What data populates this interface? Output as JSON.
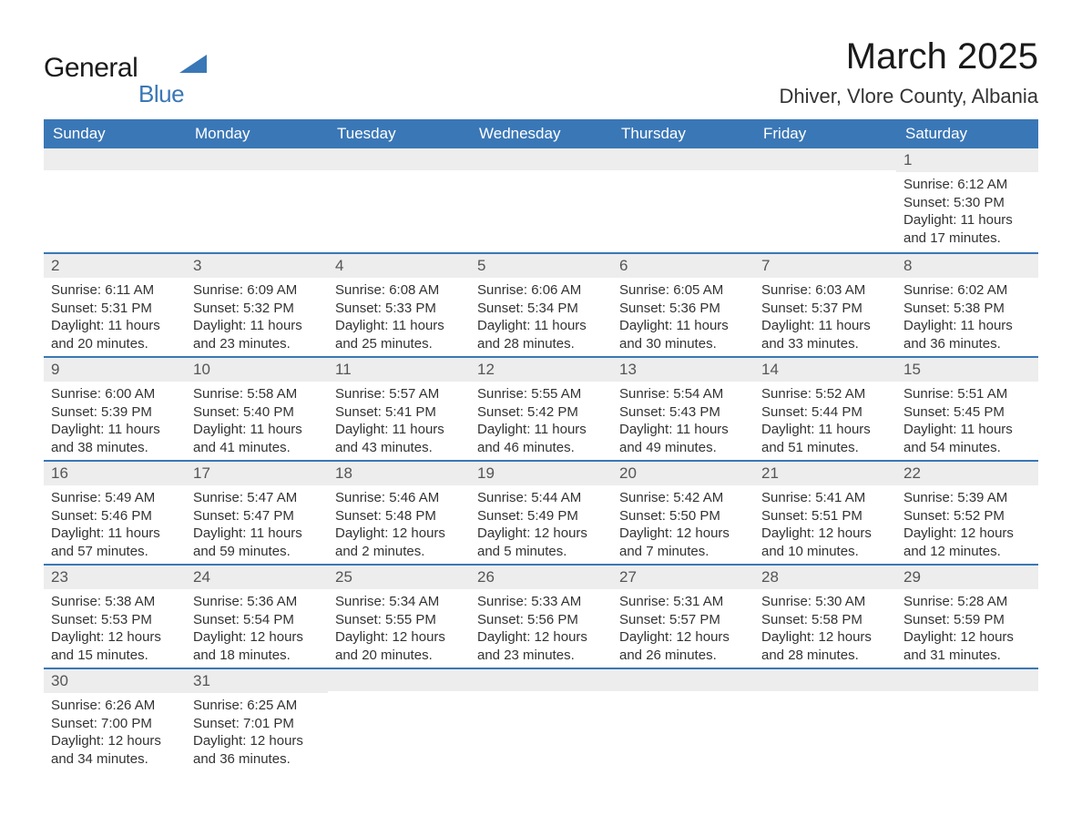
{
  "logo": {
    "text_general": "General",
    "text_blue": "Blue"
  },
  "title": "March 2025",
  "location": "Dhiver, Vlore County, Albania",
  "colors": {
    "header_bg": "#3a77b6",
    "header_text": "#ffffff",
    "daybar_bg": "#ededed",
    "divider": "#3a77b6",
    "body_text": "#333333",
    "logo_dark": "#1a1a1a",
    "logo_blue": "#3a77b6"
  },
  "typography": {
    "month_title_fontsize": 40,
    "location_fontsize": 22,
    "weekday_fontsize": 17,
    "daynum_fontsize": 17,
    "daytext_fontsize": 15
  },
  "weekdays": [
    "Sunday",
    "Monday",
    "Tuesday",
    "Wednesday",
    "Thursday",
    "Friday",
    "Saturday"
  ],
  "weeks": [
    [
      null,
      null,
      null,
      null,
      null,
      null,
      {
        "n": "1",
        "sr": "6:12 AM",
        "ss": "5:30 PM",
        "dh": "11",
        "dm": "17"
      }
    ],
    [
      {
        "n": "2",
        "sr": "6:11 AM",
        "ss": "5:31 PM",
        "dh": "11",
        "dm": "20"
      },
      {
        "n": "3",
        "sr": "6:09 AM",
        "ss": "5:32 PM",
        "dh": "11",
        "dm": "23"
      },
      {
        "n": "4",
        "sr": "6:08 AM",
        "ss": "5:33 PM",
        "dh": "11",
        "dm": "25"
      },
      {
        "n": "5",
        "sr": "6:06 AM",
        "ss": "5:34 PM",
        "dh": "11",
        "dm": "28"
      },
      {
        "n": "6",
        "sr": "6:05 AM",
        "ss": "5:36 PM",
        "dh": "11",
        "dm": "30"
      },
      {
        "n": "7",
        "sr": "6:03 AM",
        "ss": "5:37 PM",
        "dh": "11",
        "dm": "33"
      },
      {
        "n": "8",
        "sr": "6:02 AM",
        "ss": "5:38 PM",
        "dh": "11",
        "dm": "36"
      }
    ],
    [
      {
        "n": "9",
        "sr": "6:00 AM",
        "ss": "5:39 PM",
        "dh": "11",
        "dm": "38"
      },
      {
        "n": "10",
        "sr": "5:58 AM",
        "ss": "5:40 PM",
        "dh": "11",
        "dm": "41"
      },
      {
        "n": "11",
        "sr": "5:57 AM",
        "ss": "5:41 PM",
        "dh": "11",
        "dm": "43"
      },
      {
        "n": "12",
        "sr": "5:55 AM",
        "ss": "5:42 PM",
        "dh": "11",
        "dm": "46"
      },
      {
        "n": "13",
        "sr": "5:54 AM",
        "ss": "5:43 PM",
        "dh": "11",
        "dm": "49"
      },
      {
        "n": "14",
        "sr": "5:52 AM",
        "ss": "5:44 PM",
        "dh": "11",
        "dm": "51"
      },
      {
        "n": "15",
        "sr": "5:51 AM",
        "ss": "5:45 PM",
        "dh": "11",
        "dm": "54"
      }
    ],
    [
      {
        "n": "16",
        "sr": "5:49 AM",
        "ss": "5:46 PM",
        "dh": "11",
        "dm": "57"
      },
      {
        "n": "17",
        "sr": "5:47 AM",
        "ss": "5:47 PM",
        "dh": "11",
        "dm": "59"
      },
      {
        "n": "18",
        "sr": "5:46 AM",
        "ss": "5:48 PM",
        "dh": "12",
        "dm": "2"
      },
      {
        "n": "19",
        "sr": "5:44 AM",
        "ss": "5:49 PM",
        "dh": "12",
        "dm": "5"
      },
      {
        "n": "20",
        "sr": "5:42 AM",
        "ss": "5:50 PM",
        "dh": "12",
        "dm": "7"
      },
      {
        "n": "21",
        "sr": "5:41 AM",
        "ss": "5:51 PM",
        "dh": "12",
        "dm": "10"
      },
      {
        "n": "22",
        "sr": "5:39 AM",
        "ss": "5:52 PM",
        "dh": "12",
        "dm": "12"
      }
    ],
    [
      {
        "n": "23",
        "sr": "5:38 AM",
        "ss": "5:53 PM",
        "dh": "12",
        "dm": "15"
      },
      {
        "n": "24",
        "sr": "5:36 AM",
        "ss": "5:54 PM",
        "dh": "12",
        "dm": "18"
      },
      {
        "n": "25",
        "sr": "5:34 AM",
        "ss": "5:55 PM",
        "dh": "12",
        "dm": "20"
      },
      {
        "n": "26",
        "sr": "5:33 AM",
        "ss": "5:56 PM",
        "dh": "12",
        "dm": "23"
      },
      {
        "n": "27",
        "sr": "5:31 AM",
        "ss": "5:57 PM",
        "dh": "12",
        "dm": "26"
      },
      {
        "n": "28",
        "sr": "5:30 AM",
        "ss": "5:58 PM",
        "dh": "12",
        "dm": "28"
      },
      {
        "n": "29",
        "sr": "5:28 AM",
        "ss": "5:59 PM",
        "dh": "12",
        "dm": "31"
      }
    ],
    [
      {
        "n": "30",
        "sr": "6:26 AM",
        "ss": "7:00 PM",
        "dh": "12",
        "dm": "34"
      },
      {
        "n": "31",
        "sr": "6:25 AM",
        "ss": "7:01 PM",
        "dh": "12",
        "dm": "36"
      },
      null,
      null,
      null,
      null,
      null
    ]
  ],
  "labels": {
    "sunrise_prefix": "Sunrise: ",
    "sunset_prefix": "Sunset: ",
    "daylight_prefix": "Daylight: ",
    "hours_word": " hours",
    "and_word": "and ",
    "minutes_word": " minutes."
  }
}
